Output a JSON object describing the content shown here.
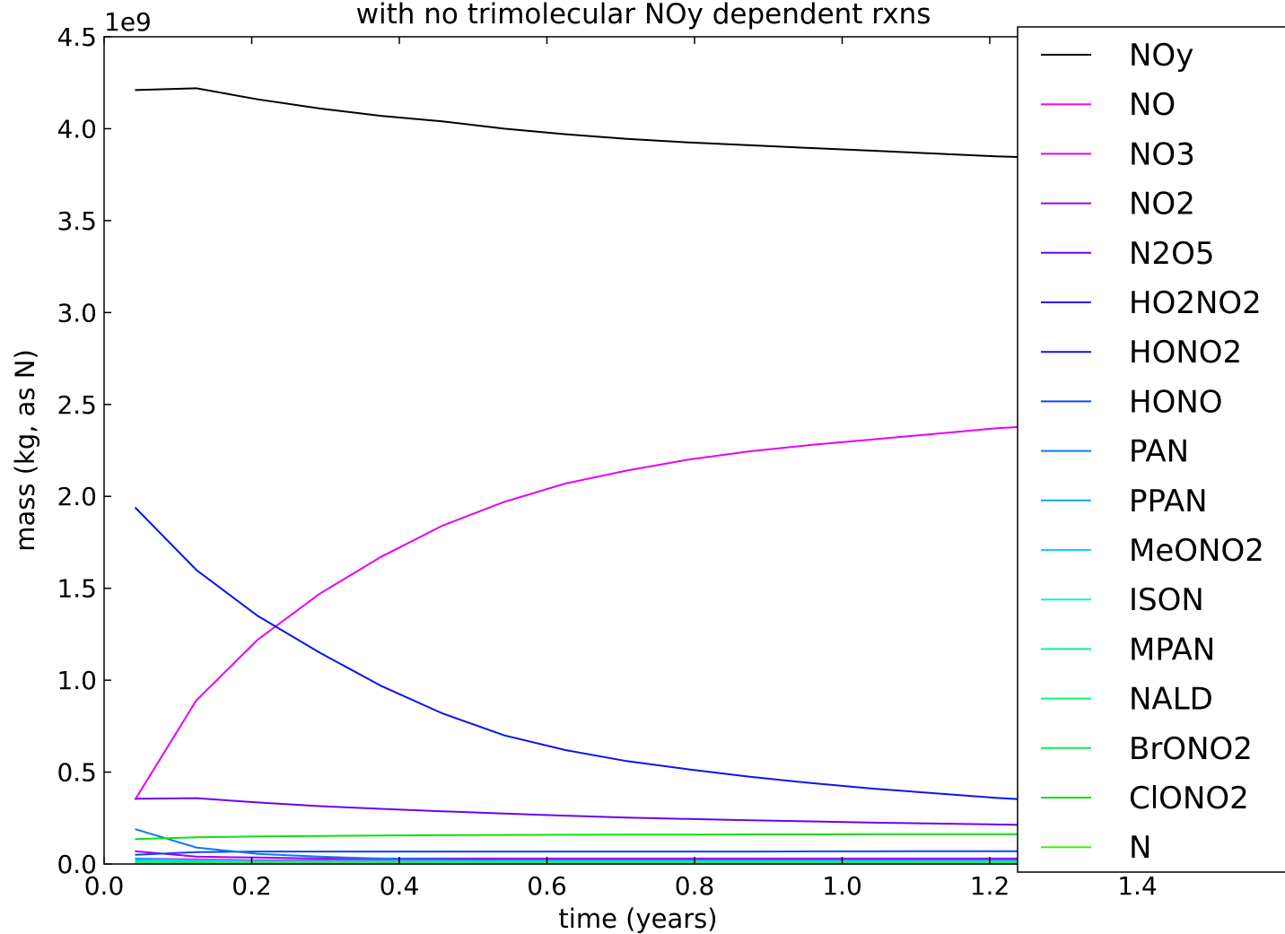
{
  "chart_data": {
    "type": "line",
    "title": "with no trimolecular NOy dependent rxns",
    "xlabel": "time (years)",
    "ylabel": "mass (kg, as N)",
    "y_multiplier_label": "1e9",
    "xlim": [
      0.0,
      1.6
    ],
    "ylim": [
      0.0,
      4.5
    ],
    "xticks": [
      "0.0",
      "0.2",
      "0.4",
      "0.6",
      "0.8",
      "1.0",
      "1.2",
      "1.4"
    ],
    "yticks": [
      "0.0",
      "0.5",
      "1.0",
      "1.5",
      "2.0",
      "2.5",
      "3.0",
      "3.5",
      "4.0",
      "4.5"
    ],
    "legend_position": "right, overlapping plot edge",
    "x": [
      0.042,
      0.125,
      0.208,
      0.292,
      0.375,
      0.458,
      0.542,
      0.625,
      0.708,
      0.792,
      0.875,
      0.958,
      1.042,
      1.125,
      1.208,
      1.292,
      1.375,
      1.458,
      1.542
    ],
    "series": [
      {
        "name": "NOy",
        "color": "#000000",
        "values": [
          4.21,
          4.22,
          4.16,
          4.11,
          4.07,
          4.04,
          4.0,
          3.97,
          3.945,
          3.925,
          3.91,
          3.895,
          3.88,
          3.865,
          3.85,
          3.84,
          3.83,
          3.82,
          3.81
        ]
      },
      {
        "name": "NO",
        "color": "#ff00ff",
        "values": [
          0.03,
          0.025,
          0.02,
          0.02,
          0.02,
          0.02,
          0.02,
          0.02,
          0.02,
          0.02,
          0.02,
          0.02,
          0.02,
          0.02,
          0.02,
          0.02,
          0.02,
          0.02,
          0.02
        ]
      },
      {
        "name": "NO3",
        "color": "#e600f2",
        "values": [
          0.35,
          0.89,
          1.22,
          1.47,
          1.67,
          1.84,
          1.97,
          2.07,
          2.14,
          2.2,
          2.245,
          2.28,
          2.31,
          2.34,
          2.37,
          2.39,
          2.41,
          2.43,
          2.45
        ]
      },
      {
        "name": "NO2",
        "color": "#a000f0",
        "values": [
          0.07,
          0.04,
          0.035,
          0.03,
          0.03,
          0.03,
          0.03,
          0.03,
          0.03,
          0.03,
          0.03,
          0.03,
          0.03,
          0.03,
          0.03,
          0.03,
          0.03,
          0.03,
          0.03
        ]
      },
      {
        "name": "N2O5",
        "color": "#7000f0",
        "values": [
          0.355,
          0.358,
          0.335,
          0.315,
          0.3,
          0.287,
          0.275,
          0.263,
          0.253,
          0.245,
          0.238,
          0.232,
          0.225,
          0.22,
          0.215,
          0.21,
          0.205,
          0.2,
          0.195
        ]
      },
      {
        "name": "HO2NO2",
        "color": "#4000f0",
        "values": [
          0.02,
          0.015,
          0.012,
          0.01,
          0.01,
          0.01,
          0.01,
          0.01,
          0.01,
          0.01,
          0.01,
          0.01,
          0.01,
          0.01,
          0.01,
          0.01,
          0.01,
          0.01,
          0.01
        ]
      },
      {
        "name": "HONO2",
        "color": "#0a14f0",
        "values": [
          1.94,
          1.6,
          1.35,
          1.15,
          0.97,
          0.82,
          0.7,
          0.62,
          0.56,
          0.515,
          0.475,
          0.44,
          0.41,
          0.385,
          0.36,
          0.34,
          0.32,
          0.305,
          0.29
        ]
      },
      {
        "name": "HONO",
        "color": "#0c46f0",
        "values": [
          0.05,
          0.065,
          0.068,
          0.068,
          0.068,
          0.068,
          0.068,
          0.068,
          0.068,
          0.068,
          0.068,
          0.069,
          0.069,
          0.07,
          0.07,
          0.07,
          0.07,
          0.07,
          0.07
        ]
      },
      {
        "name": "PAN",
        "color": "#0c7af0",
        "values": [
          0.19,
          0.09,
          0.055,
          0.04,
          0.03,
          0.025,
          0.02,
          0.02,
          0.02,
          0.02,
          0.02,
          0.02,
          0.02,
          0.02,
          0.02,
          0.02,
          0.02,
          0.02,
          0.02
        ]
      },
      {
        "name": "PPAN",
        "color": "#0ca8f0",
        "values": [
          0.03,
          0.02,
          0.015,
          0.012,
          0.01,
          0.01,
          0.01,
          0.01,
          0.01,
          0.01,
          0.01,
          0.01,
          0.01,
          0.01,
          0.01,
          0.01,
          0.01,
          0.01,
          0.01
        ]
      },
      {
        "name": "MeONO2",
        "color": "#0cd6f0",
        "values": [
          0.02,
          0.018,
          0.015,
          0.015,
          0.015,
          0.015,
          0.015,
          0.015,
          0.015,
          0.015,
          0.015,
          0.015,
          0.015,
          0.015,
          0.015,
          0.015,
          0.015,
          0.015,
          0.015
        ]
      },
      {
        "name": "ISON",
        "color": "#0cf0d8",
        "values": [
          0.01,
          0.008,
          0.007,
          0.006,
          0.006,
          0.006,
          0.006,
          0.006,
          0.006,
          0.006,
          0.006,
          0.006,
          0.006,
          0.006,
          0.006,
          0.006,
          0.006,
          0.006,
          0.006
        ]
      },
      {
        "name": "MPAN",
        "color": "#0cf0a8",
        "values": [
          0.01,
          0.008,
          0.006,
          0.005,
          0.005,
          0.005,
          0.005,
          0.005,
          0.005,
          0.005,
          0.005,
          0.005,
          0.005,
          0.005,
          0.005,
          0.005,
          0.005,
          0.005,
          0.005
        ]
      },
      {
        "name": "NALD",
        "color": "#0cf078",
        "values": [
          0.005,
          0.004,
          0.004,
          0.004,
          0.004,
          0.004,
          0.004,
          0.004,
          0.004,
          0.004,
          0.004,
          0.004,
          0.004,
          0.004,
          0.004,
          0.004,
          0.004,
          0.004,
          0.004
        ]
      },
      {
        "name": "BrONO2",
        "color": "#0cf050",
        "values": [
          0.005,
          0.005,
          0.005,
          0.005,
          0.005,
          0.005,
          0.005,
          0.005,
          0.005,
          0.005,
          0.005,
          0.005,
          0.005,
          0.005,
          0.005,
          0.005,
          0.005,
          0.005,
          0.005
        ]
      },
      {
        "name": "ClONO2",
        "color": "#10e010",
        "values": [
          0.135,
          0.145,
          0.15,
          0.153,
          0.155,
          0.157,
          0.158,
          0.159,
          0.16,
          0.16,
          0.161,
          0.161,
          0.162,
          0.162,
          0.162,
          0.163,
          0.163,
          0.163,
          0.163
        ]
      },
      {
        "name": "N",
        "color": "#40f010",
        "values": [
          0.002,
          0.002,
          0.002,
          0.002,
          0.002,
          0.002,
          0.002,
          0.002,
          0.002,
          0.002,
          0.002,
          0.002,
          0.002,
          0.002,
          0.002,
          0.002,
          0.002,
          0.002,
          0.002
        ]
      }
    ]
  }
}
